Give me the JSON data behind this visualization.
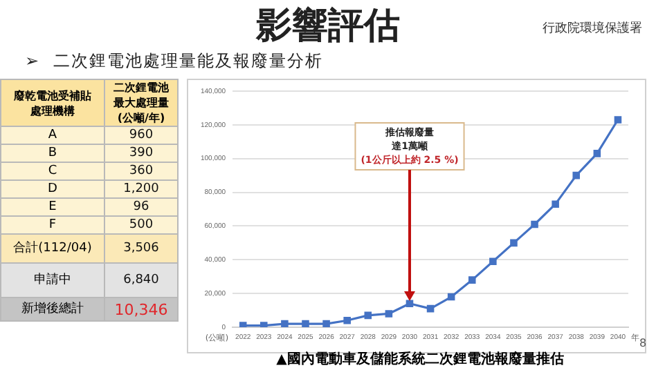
{
  "chart_data": [
    {
      "type": "other",
      "subtitle": "➢  二次鋰電池處理量能及報廢量分析",
      "categories": [
        "A",
        "B",
        "C",
        "D",
        "E",
        "F",
        "合計(112/04)",
        "申請中",
        "新增後總計"
      ],
      "value_labels": [
        "960",
        "390",
        "360",
        "1,200",
        "96",
        "500",
        "3,506",
        "6,840",
        "10,346"
      ],
      "annotations": [
        "廢乾電池受補貼處理機構",
        "二次鋰電池最大處理量(公噸/年)"
      ]
    },
    {
      "type": "line",
      "title": "影響評估",
      "categories": [
        "2022",
        "2023",
        "2024",
        "2025",
        "2026",
        "2027",
        "2028",
        "2029",
        "2030",
        "2031",
        "2032",
        "2033",
        "2034",
        "2035",
        "2036",
        "2037",
        "2038",
        "2039",
        "2040"
      ],
      "series": [
        {
          "color": "#4472c4",
          "values": [
            1000,
            1000,
            2000,
            2000,
            2000,
            4000,
            7000,
            8000,
            14000,
            11000,
            18000,
            28000,
            39000,
            50000,
            61000,
            73000,
            90000,
            103000,
            123000
          ]
        }
      ],
      "ylim": [
        0,
        140000
      ],
      "yticks": [
        0,
        {
          "value": 20000,
          "label": "20,000"
        },
        {
          "value": 40000,
          "label": "40,000"
        },
        {
          "value": 60000,
          "label": "60,000"
        },
        {
          "value": 80000,
          "label": "80,000"
        },
        {
          "value": 100000,
          "label": "100,000"
        },
        {
          "value": 120000,
          "label": "120,000"
        },
        {
          "value": 140000,
          "label": "140,000"
        }
      ],
      "xlabel": "年",
      "ylabel": "(公噸)",
      "grid": "y",
      "legend": false,
      "marker": "square",
      "line_style": "solid",
      "annotations": [
        "推估報廢量達1萬噸",
        "(1公斤以上約 2.5 %)",
        "▲國內電動車及儲能系統二次鋰電池報廢量推估",
        "行政院環境保護署",
        "8"
      ]
    }
  ]
}
